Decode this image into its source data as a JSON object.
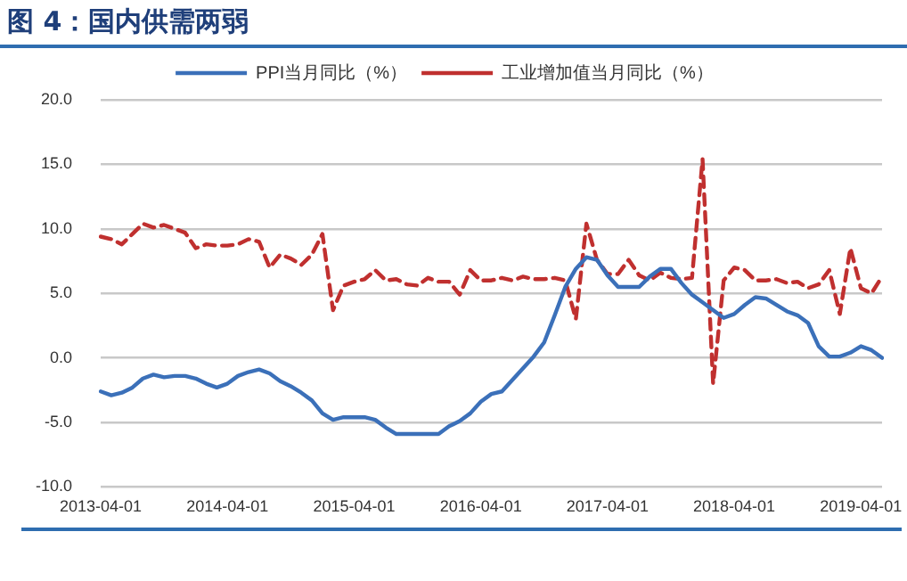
{
  "chart_data": {
    "type": "line",
    "title": "图 4：国内供需两弱",
    "categories": [
      "2013-04-01",
      null,
      null,
      null,
      null,
      null,
      null,
      null,
      null,
      null,
      null,
      null,
      "2014-04-01",
      null,
      null,
      null,
      null,
      null,
      null,
      null,
      null,
      null,
      null,
      null,
      "2015-04-01",
      null,
      null,
      null,
      null,
      null,
      null,
      null,
      null,
      null,
      null,
      null,
      "2016-04-01",
      null,
      null,
      null,
      null,
      null,
      null,
      null,
      null,
      null,
      null,
      null,
      "2017-04-01",
      null,
      null,
      null,
      null,
      null,
      null,
      null,
      null,
      null,
      null,
      null,
      "2018-04-01",
      null,
      null,
      null,
      null,
      null,
      null,
      null,
      null,
      null,
      null,
      null,
      "2019-04-01",
      null,
      null
    ],
    "series": [
      {
        "name": "PPI当月同比（%）",
        "color": "#3b70b9",
        "line_style": "solid",
        "values": [
          -2.6,
          -2.9,
          -2.7,
          -2.3,
          -1.6,
          -1.3,
          -1.5,
          -1.4,
          -1.4,
          -1.6,
          -2.0,
          -2.3,
          -2.0,
          -1.4,
          -1.1,
          -0.9,
          -1.2,
          -1.8,
          -2.2,
          -2.7,
          -3.3,
          -4.3,
          -4.8,
          -4.6,
          -4.6,
          -4.6,
          -4.8,
          -5.4,
          -5.9,
          -5.9,
          -5.9,
          -5.9,
          -5.9,
          -5.3,
          -4.9,
          -4.3,
          -3.4,
          -2.8,
          -2.6,
          -1.7,
          -0.8,
          0.1,
          1.2,
          3.3,
          5.5,
          6.9,
          7.8,
          7.6,
          6.4,
          5.5,
          5.5,
          5.5,
          6.3,
          6.9,
          6.9,
          5.8,
          4.9,
          4.3,
          3.7,
          3.1,
          3.4,
          4.1,
          4.7,
          4.6,
          4.1,
          3.6,
          3.3,
          2.7,
          0.9,
          0.1,
          0.1,
          0.4,
          0.9,
          0.6,
          0.0
        ]
      },
      {
        "name": "工业增加值当月同比（%）",
        "color": "#c0302f",
        "line_style": "dashed",
        "values": [
          9.4,
          9.2,
          8.8,
          9.6,
          10.4,
          10.1,
          10.3,
          10.0,
          9.7,
          8.5,
          8.8,
          8.7,
          8.7,
          8.8,
          9.2,
          9.0,
          7.0,
          8.0,
          7.7,
          7.2,
          8.0,
          9.6,
          3.7,
          5.6,
          5.9,
          6.1,
          6.8,
          6.0,
          6.1,
          5.7,
          5.6,
          6.2,
          5.9,
          5.9,
          4.9,
          6.8,
          6.0,
          6.0,
          6.2,
          6.0,
          6.3,
          6.1,
          6.1,
          6.2,
          6.0,
          3.0,
          10.4,
          7.6,
          6.5,
          6.5,
          7.6,
          6.4,
          6.0,
          6.6,
          6.2,
          6.1,
          6.2,
          15.4,
          -2.0,
          6.0,
          7.0,
          6.8,
          6.0,
          6.0,
          6.1,
          5.8,
          5.9,
          5.4,
          5.7,
          6.8,
          3.4,
          8.5,
          5.4,
          5.0,
          6.3
        ]
      }
    ],
    "ylim": [
      -10,
      20
    ],
    "yticks": [
      {
        "value": -10,
        "label": "-10.0"
      },
      {
        "value": -5,
        "label": "-5.0"
      },
      {
        "value": 0,
        "label": "0.0"
      },
      {
        "value": 5,
        "label": "5.0"
      },
      {
        "value": 10,
        "label": "10.0"
      },
      {
        "value": 15,
        "label": "15.0"
      },
      {
        "value": 20,
        "label": "20.0"
      }
    ],
    "grid": "y",
    "legend": "top",
    "marker": "none"
  }
}
